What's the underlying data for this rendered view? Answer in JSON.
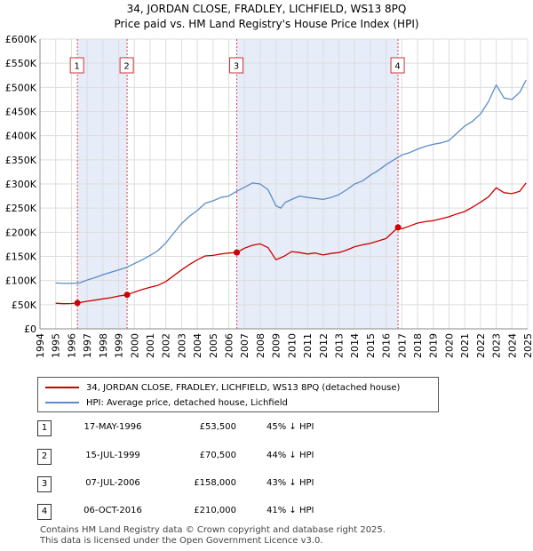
{
  "title": "34, JORDAN CLOSE, FRADLEY, LICHFIELD, WS13 8PQ",
  "subtitle": "Price paid vs. HM Land Registry's House Price Index (HPI)",
  "chart_data": {
    "type": "line",
    "title": "34, JORDAN CLOSE, FRADLEY, LICHFIELD, WS13 8PQ",
    "subtitle": "Price paid vs. HM Land Registry's House Price Index (HPI)",
    "xlabel": "",
    "ylabel": "",
    "xlim": [
      1994,
      2025
    ],
    "ylim": [
      0,
      600000
    ],
    "x_ticks": [
      1994,
      1995,
      1996,
      1997,
      1998,
      1999,
      2000,
      2001,
      2002,
      2003,
      2004,
      2005,
      2006,
      2007,
      2008,
      2009,
      2010,
      2011,
      2012,
      2013,
      2014,
      2015,
      2016,
      2017,
      2018,
      2019,
      2020,
      2021,
      2022,
      2023,
      2024,
      2025
    ],
    "y_ticks": [
      {
        "value": 0,
        "label": "£0"
      },
      {
        "value": 50000,
        "label": "£50K"
      },
      {
        "value": 100000,
        "label": "£100K"
      },
      {
        "value": 150000,
        "label": "£150K"
      },
      {
        "value": 200000,
        "label": "£200K"
      },
      {
        "value": 250000,
        "label": "£250K"
      },
      {
        "value": 300000,
        "label": "£300K"
      },
      {
        "value": 350000,
        "label": "£350K"
      },
      {
        "value": 400000,
        "label": "£400K"
      },
      {
        "value": 450000,
        "label": "£450K"
      },
      {
        "value": 500000,
        "label": "£500K"
      },
      {
        "value": 550000,
        "label": "£550K"
      },
      {
        "value": 600000,
        "label": "£600K"
      }
    ],
    "grid": true,
    "legend_position": "below",
    "colors": {
      "property": "#cc0000",
      "hpi": "#5b8cc8",
      "shade": "#e6ecf8"
    },
    "series": [
      {
        "name": "34, JORDAN CLOSE, FRADLEY, LICHFIELD, WS13 8PQ (detached house)",
        "color": "#cc0000",
        "x": [
          1995.0,
          1995.5,
          1996.0,
          1996.38,
          1997.0,
          1997.5,
          1998.0,
          1998.5,
          1999.0,
          1999.54,
          2000.0,
          2000.5,
          2001.0,
          2001.5,
          2002.0,
          2002.5,
          2003.0,
          2003.5,
          2004.0,
          2004.5,
          2005.0,
          2005.5,
          2006.0,
          2006.51,
          2007.0,
          2007.5,
          2008.0,
          2008.5,
          2009.0,
          2009.5,
          2010.0,
          2010.5,
          2011.0,
          2011.5,
          2012.0,
          2012.5,
          2013.0,
          2013.5,
          2014.0,
          2014.5,
          2015.0,
          2015.5,
          2016.0,
          2016.76,
          2017.0,
          2017.5,
          2018.0,
          2018.5,
          2019.0,
          2019.5,
          2020.0,
          2020.5,
          2021.0,
          2021.5,
          2022.0,
          2022.5,
          2023.0,
          2023.5,
          2024.0,
          2024.5,
          2024.9
        ],
        "values": [
          53000,
          52000,
          52500,
          53500,
          57000,
          59500,
          62000,
          64500,
          68000,
          70500,
          76000,
          81500,
          86000,
          90000,
          98000,
          110000,
          122000,
          133000,
          143000,
          151000,
          152000,
          155000,
          157000,
          158000,
          167000,
          173000,
          176000,
          168000,
          143000,
          150000,
          160000,
          158000,
          155000,
          157000,
          153000,
          156000,
          158000,
          163000,
          170000,
          174000,
          177000,
          182000,
          187000,
          210000,
          207000,
          213000,
          219000,
          222000,
          224000,
          228000,
          232000,
          238000,
          243000,
          252000,
          262000,
          273000,
          292000,
          282000,
          280000,
          285000,
          302000
        ]
      },
      {
        "name": "HPI: Average price, detached house, Lichfield",
        "color": "#5b8cc8",
        "x": [
          1995.0,
          1995.5,
          1996.0,
          1996.5,
          1997.0,
          1997.5,
          1998.0,
          1998.5,
          1999.0,
          1999.5,
          2000.0,
          2000.5,
          2001.0,
          2001.5,
          2002.0,
          2002.5,
          2003.0,
          2003.5,
          2004.0,
          2004.5,
          2005.0,
          2005.5,
          2006.0,
          2006.5,
          2007.0,
          2007.5,
          2008.0,
          2008.5,
          2009.0,
          2009.3,
          2009.6,
          2010.0,
          2010.5,
          2011.0,
          2011.5,
          2012.0,
          2012.5,
          2013.0,
          2013.5,
          2014.0,
          2014.5,
          2015.0,
          2015.5,
          2016.0,
          2016.5,
          2017.0,
          2017.5,
          2018.0,
          2018.5,
          2019.0,
          2019.5,
          2020.0,
          2020.5,
          2021.0,
          2021.5,
          2022.0,
          2022.5,
          2023.0,
          2023.5,
          2024.0,
          2024.5,
          2024.9
        ],
        "values": [
          95000,
          94000,
          94000,
          95000,
          101000,
          106000,
          112000,
          117000,
          122000,
          127000,
          135000,
          143000,
          152000,
          162000,
          178000,
          198000,
          218000,
          233000,
          245000,
          260000,
          265000,
          272000,
          275000,
          285000,
          293000,
          302000,
          300000,
          288000,
          255000,
          250000,
          262000,
          268000,
          275000,
          272000,
          270000,
          268000,
          272000,
          278000,
          288000,
          300000,
          306000,
          318000,
          328000,
          340000,
          350000,
          360000,
          365000,
          372000,
          378000,
          382000,
          385000,
          390000,
          405000,
          420000,
          430000,
          445000,
          470000,
          505000,
          478000,
          475000,
          490000,
          515000
        ]
      }
    ],
    "transactions": [
      {
        "id": "1",
        "x": 1996.38,
        "value": 53500
      },
      {
        "id": "2",
        "x": 1999.54,
        "value": 70500
      },
      {
        "id": "3",
        "x": 2006.51,
        "value": 158000
      },
      {
        "id": "4",
        "x": 2016.76,
        "value": 210000
      }
    ]
  },
  "legend": {
    "property_label": "34, JORDAN CLOSE, FRADLEY, LICHFIELD, WS13 8PQ (detached house)",
    "hpi_label": "HPI: Average price, detached house, Lichfield"
  },
  "table": [
    {
      "num": "1",
      "date": "17-MAY-1996",
      "price": "£53,500",
      "hpi": "45% ↓ HPI"
    },
    {
      "num": "2",
      "date": "15-JUL-1999",
      "price": "£70,500",
      "hpi": "44% ↓ HPI"
    },
    {
      "num": "3",
      "date": "07-JUL-2006",
      "price": "£158,000",
      "hpi": "43% ↓ HPI"
    },
    {
      "num": "4",
      "date": "06-OCT-2016",
      "price": "£210,000",
      "hpi": "41% ↓ HPI"
    }
  ],
  "footer": {
    "line1": "Contains HM Land Registry data © Crown copyright and database right 2025.",
    "line2": "This data is licensed under the Open Government Licence v3.0."
  }
}
